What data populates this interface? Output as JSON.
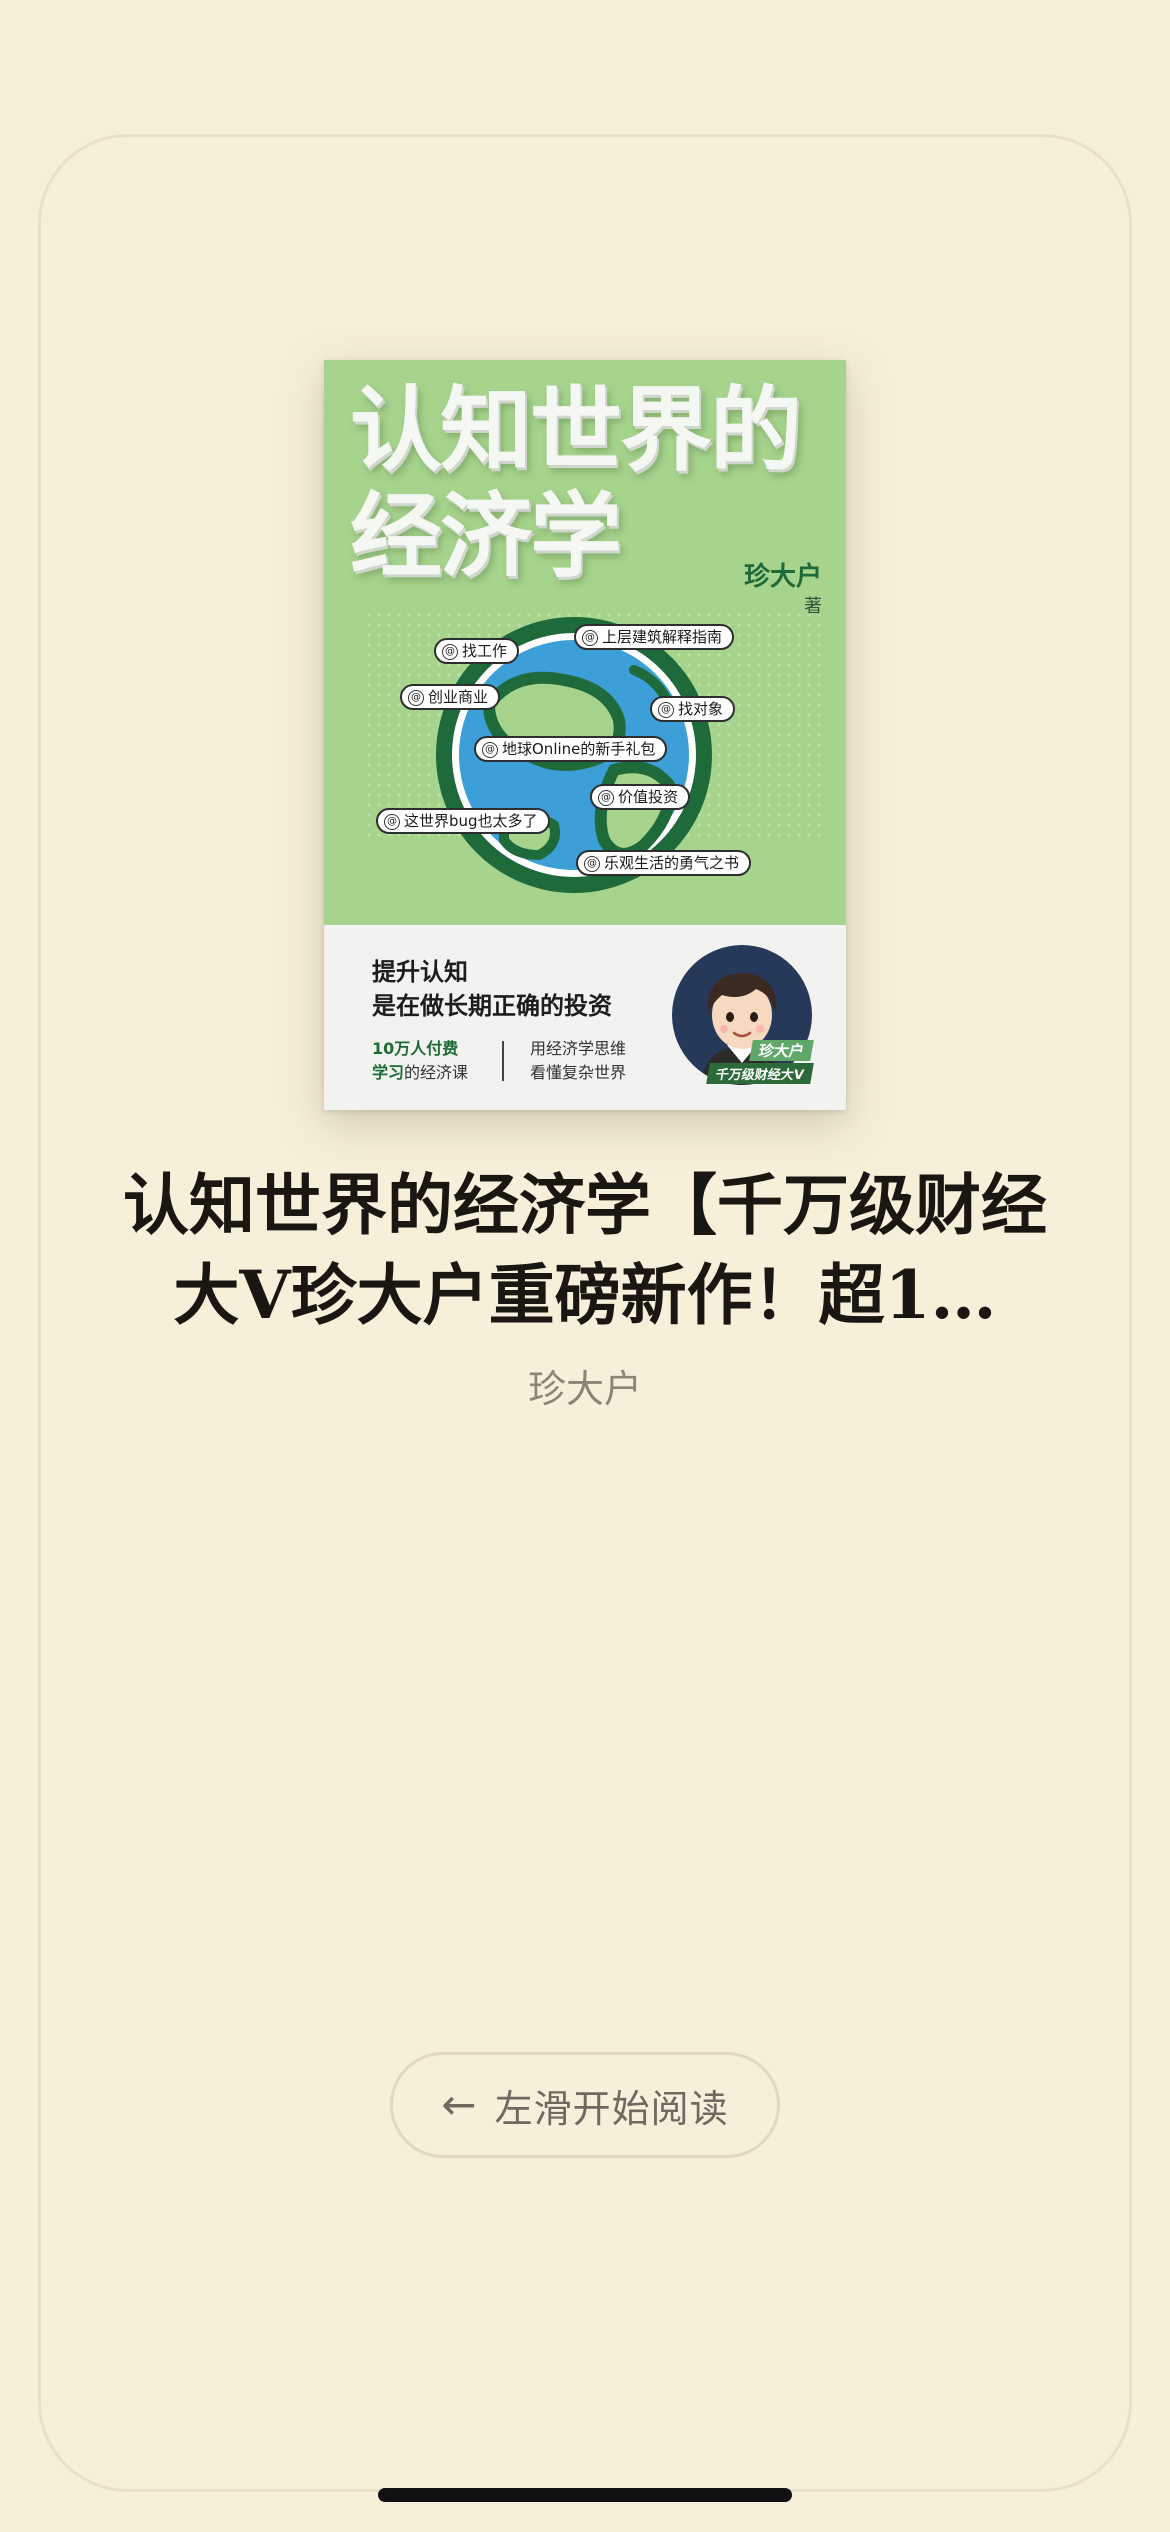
{
  "book": {
    "cover_title": "认知世界的经济学",
    "cover_author": "珍大户",
    "cover_author_suffix": "著",
    "cover_tags": [
      "找工作",
      "上层建筑解释指南",
      "创业商业",
      "找对象",
      "地球Online的新手礼包",
      "价值投资",
      "这世界bug也太多了",
      "乐观生活的勇气之书"
    ],
    "cover_slogan_line1": "提升认知",
    "cover_slogan_line2": "是在做长期正确的投资",
    "cover_stat_a_line1": "10万人付费",
    "cover_stat_a_line2_em": "学习",
    "cover_stat_a_line2_rest": "的经济课",
    "cover_stat_b_line1": "用经济学思维",
    "cover_stat_b_line2": "看懂复杂世界",
    "cover_badge_name": "珍大户",
    "cover_badge_sub": "千万级财经大V",
    "title": "认知世界的经济学【千万级财经大V珍大户重磅新作！超1…",
    "author": "珍大户"
  },
  "actions": {
    "start_reading_arrow": "←",
    "start_reading_label": "左滑开始阅读"
  },
  "colors": {
    "background": "#f6efda",
    "cover_green": "#a6d48d",
    "dark_green": "#1f6a3a"
  }
}
